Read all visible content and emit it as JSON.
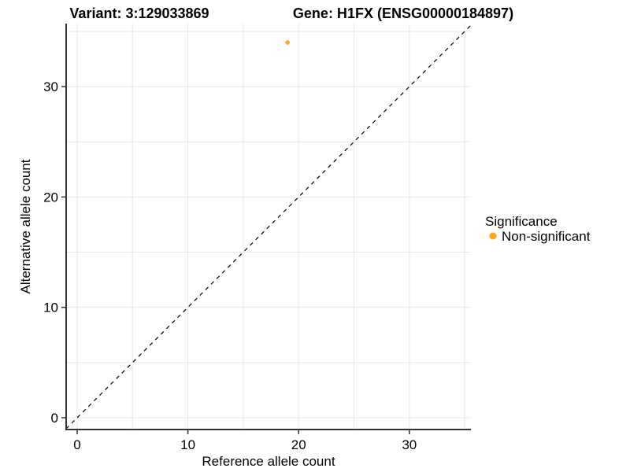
{
  "chart_data": {
    "type": "scatter",
    "title_left": "Variant: 3:129033869",
    "title_right": "Gene: H1FX (ENSG00000184897)",
    "xlabel": "Reference allele count",
    "ylabel": "Alternative allele count",
    "x_ticks": [
      "0",
      "10",
      "20",
      "30"
    ],
    "y_ticks": [
      "0",
      "10",
      "20",
      "30"
    ],
    "x_tick_values": [
      0,
      10,
      20,
      30
    ],
    "y_tick_values": [
      0,
      10,
      20,
      30
    ],
    "xlim": [
      -1,
      35.6
    ],
    "ylim": [
      -1,
      35.6
    ],
    "grid": "on",
    "grid_step": 5,
    "points": [
      {
        "x": 19,
        "y": 34,
        "series": "Non-significant",
        "color": "#F9A242"
      }
    ],
    "diagonal_line": {
      "style": "dashed",
      "from": [
        -1,
        -1
      ],
      "to": [
        35.6,
        35.6
      ],
      "color": "#000000"
    },
    "legend": {
      "position": "right",
      "title": "Significance",
      "items": [
        {
          "label": "Non-significant",
          "color": "#FFA216"
        }
      ]
    },
    "colors": {
      "axis_line": "#333333",
      "gridline": "#E9E9E9",
      "background": "#FFFFFF"
    }
  }
}
